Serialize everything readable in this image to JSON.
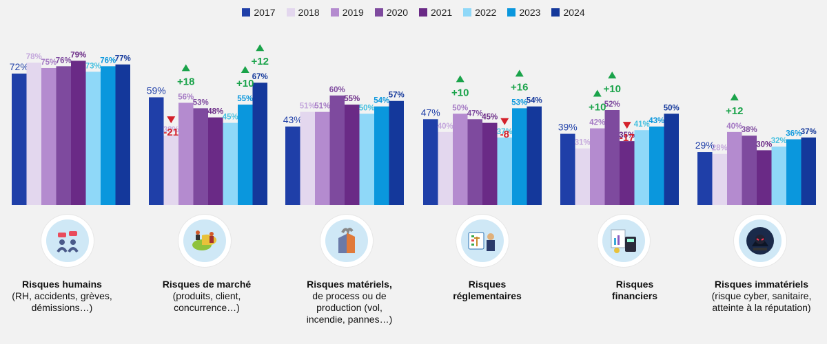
{
  "chart_data": {
    "type": "bar",
    "categories": [
      {
        "title": "Risques humains",
        "subtitle": "(RH, accidents, grèves, démissions…)",
        "icon": "people-conflict-icon"
      },
      {
        "title": "Risques de marché",
        "subtitle": "(produits, client, concurrence…)",
        "icon": "market-pie-icon"
      },
      {
        "title": "Risques matériels,",
        "subtitle": "de process ou de production (vol, incendie, pannes…)",
        "icon": "building-fire-icon"
      },
      {
        "title": "Risques réglementaires",
        "subtitle": "",
        "icon": "legal-scale-icon"
      },
      {
        "title": "Risques financiers",
        "subtitle": "",
        "icon": "calculator-finance-icon"
      },
      {
        "title": "Risques immatériels",
        "subtitle": "(risque cyber, sanitaire, atteinte à la réputation)",
        "icon": "hacker-icon"
      }
    ],
    "series": [
      {
        "name": "2017",
        "color": "#1f3fa8",
        "values": [
          72,
          59,
          43,
          47,
          39,
          29
        ]
      },
      {
        "name": "2018",
        "color": "#e3d7ee",
        "values": [
          78,
          38,
          51,
          40,
          31,
          28
        ]
      },
      {
        "name": "2019",
        "color": "#b48bcf",
        "values": [
          75,
          56,
          51,
          50,
          42,
          40
        ]
      },
      {
        "name": "2020",
        "color": "#7e4a9e",
        "values": [
          76,
          53,
          60,
          47,
          52,
          38
        ]
      },
      {
        "name": "2021",
        "color": "#6a2a86",
        "values": [
          79,
          48,
          55,
          45,
          35,
          30
        ]
      },
      {
        "name": "2022",
        "color": "#8fd8f8",
        "values": [
          73,
          45,
          50,
          37,
          41,
          32
        ]
      },
      {
        "name": "2023",
        "color": "#0a97dd",
        "values": [
          76,
          55,
          54,
          53,
          43,
          36
        ]
      },
      {
        "name": "2024",
        "color": "#14389b",
        "values": [
          77,
          67,
          57,
          54,
          50,
          37
        ]
      }
    ],
    "label_colors": [
      "#1f3fa8",
      "#c4a8dc",
      "#a57ac4",
      "#7e4a9e",
      "#6a2a86",
      "#45c0e0",
      "#0a97dd",
      "#14389b"
    ],
    "annotations": [
      {
        "category": 1,
        "series": 1,
        "text": "-21",
        "direction": "down"
      },
      {
        "category": 1,
        "series": 2,
        "text": "+18",
        "direction": "up"
      },
      {
        "category": 1,
        "series": 6,
        "text": "+10",
        "direction": "up"
      },
      {
        "category": 1,
        "series": 7,
        "text": "+12",
        "direction": "up"
      },
      {
        "category": 3,
        "series": 2,
        "text": "+10",
        "direction": "up"
      },
      {
        "category": 3,
        "series": 5,
        "text": "-8",
        "direction": "down"
      },
      {
        "category": 3,
        "series": 6,
        "text": "+16",
        "direction": "up"
      },
      {
        "category": 4,
        "series": 2,
        "text": "+10",
        "direction": "up"
      },
      {
        "category": 4,
        "series": 3,
        "text": "+10",
        "direction": "up"
      },
      {
        "category": 4,
        "series": 4,
        "text": "-17",
        "direction": "down"
      },
      {
        "category": 5,
        "series": 2,
        "text": "+12",
        "direction": "up"
      }
    ],
    "up_color": "#1aa34a",
    "down_color": "#d4202a",
    "ylim": [
      0,
      100
    ],
    "legend_position": "top-center",
    "grid": false
  }
}
